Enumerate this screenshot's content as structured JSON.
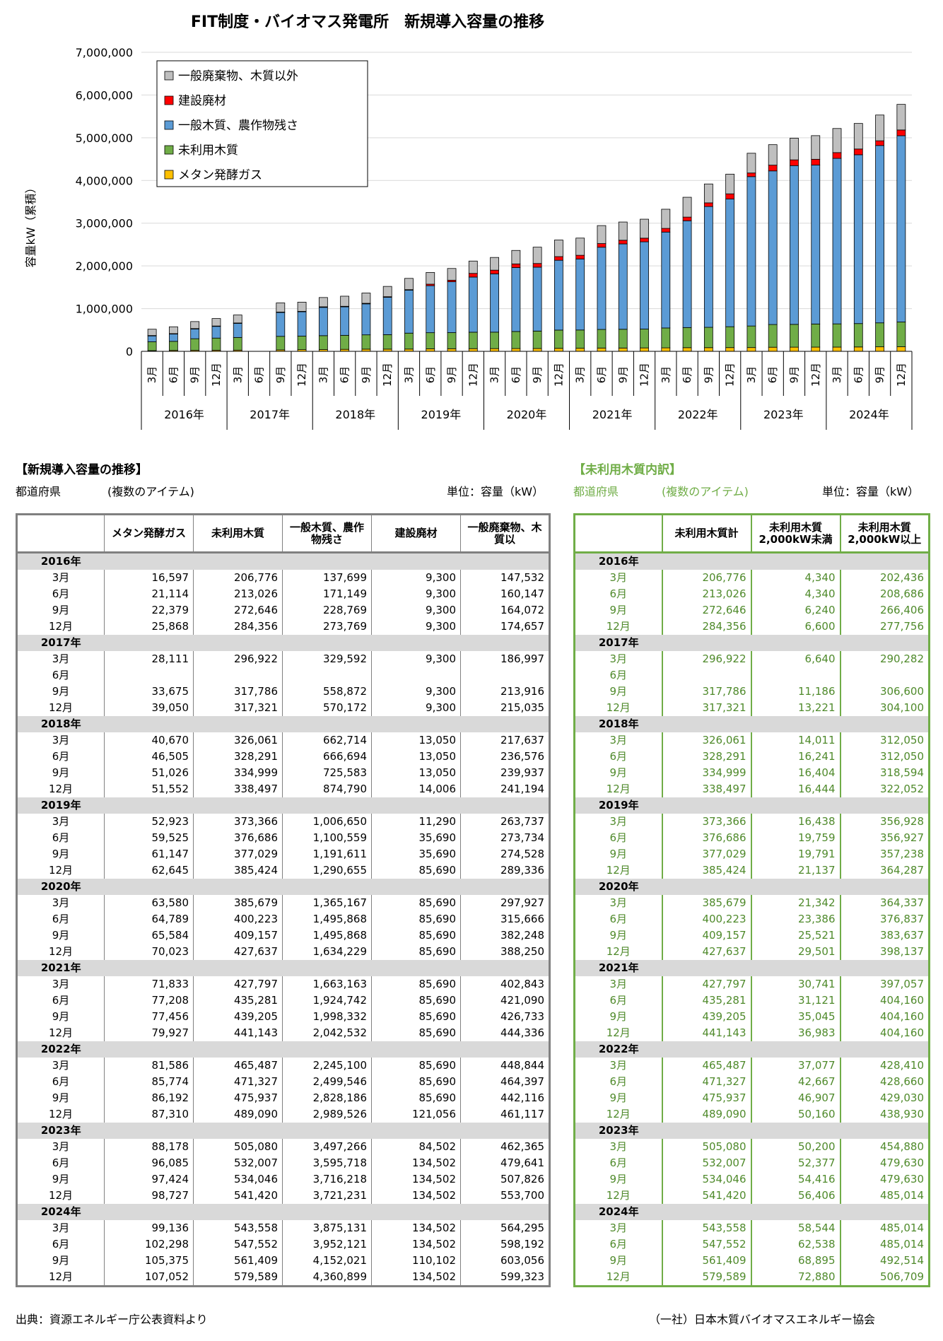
{
  "chart_data": {
    "type": "stacked-bar",
    "title": "FIT制度・バイオマス発電所　新規導入容量の推移",
    "ylabel": "容量kW（累積）",
    "ylim": [
      0,
      7000000
    ],
    "yticks": [
      "0",
      "1,000,000",
      "2,000,000",
      "3,000,000",
      "4,000,000",
      "5,000,000",
      "6,000,000",
      "7,000,000"
    ],
    "grid": true,
    "legend_position": "top-left",
    "months": [
      "3月",
      "6月",
      "9月",
      "12月"
    ],
    "years": [
      "2016年",
      "2017年",
      "2018年",
      "2019年",
      "2020年",
      "2021年",
      "2022年",
      "2023年",
      "2024年"
    ],
    "series": [
      {
        "name": "メタン発酵ガス",
        "color": "#ffc000",
        "values": [
          16597,
          21114,
          22379,
          25868,
          28111,
          null,
          33675,
          39050,
          40670,
          46505,
          51026,
          51552,
          52923,
          59525,
          61147,
          62645,
          63580,
          64789,
          65584,
          70023,
          71833,
          77208,
          77456,
          79927,
          81586,
          85774,
          86192,
          87310,
          88178,
          96085,
          97424,
          98727,
          99136,
          102298,
          105375,
          107052
        ]
      },
      {
        "name": "未利用木質",
        "color": "#70ad47",
        "values": [
          206776,
          213026,
          272646,
          284356,
          296922,
          null,
          317786,
          317321,
          326061,
          328291,
          334999,
          338497,
          373366,
          376686,
          377029,
          385424,
          385679,
          400223,
          409157,
          427637,
          427797,
          435281,
          439205,
          441143,
          465487,
          471327,
          475937,
          489090,
          505080,
          532007,
          534046,
          541420,
          543558,
          547552,
          561409,
          579589
        ]
      },
      {
        "name": "一般木質、農作物残さ",
        "color": "#5b9bd5",
        "values": [
          137699,
          171149,
          228769,
          273769,
          329592,
          null,
          558872,
          570172,
          662714,
          666694,
          725583,
          874790,
          1006650,
          1100559,
          1191611,
          1290655,
          1365167,
          1495868,
          1495868,
          1634229,
          1663163,
          1924742,
          1998332,
          2042532,
          2245100,
          2499546,
          2828186,
          2989526,
          3497266,
          3595718,
          3716218,
          3721231,
          3875131,
          3952121,
          4152021,
          4360899
        ]
      },
      {
        "name": "建設廃材",
        "color": "#ff0000",
        "values": [
          9300,
          9300,
          9300,
          9300,
          9300,
          null,
          9300,
          9300,
          13050,
          13050,
          13050,
          14006,
          11290,
          35690,
          35690,
          85690,
          85690,
          85690,
          85690,
          85690,
          85690,
          85690,
          85690,
          85690,
          85690,
          85690,
          85690,
          121056,
          84502,
          134502,
          134502,
          134502,
          134502,
          134502,
          110102,
          134502
        ]
      },
      {
        "name": "一般廃棄物、木質以外",
        "color": "#bfbfbf",
        "values": [
          147532,
          160147,
          164072,
          174657,
          186997,
          null,
          213916,
          215035,
          217637,
          236576,
          239937,
          241194,
          263737,
          273734,
          274528,
          289336,
          297927,
          315666,
          382248,
          388250,
          402843,
          421090,
          426733,
          444336,
          448844,
          464397,
          442116,
          461117,
          462365,
          479641,
          507826,
          553700,
          564295,
          598192,
          603056,
          599323
        ]
      }
    ]
  },
  "legend_order": [
    "一般廃棄物、木質以外",
    "建設廃材",
    "一般木質、農作物残さ",
    "未利用木質",
    "メタン発酵ガス"
  ],
  "main_table": {
    "title": "【新規導入容量の推移】",
    "filter_label": "都道府県",
    "filter_value": "(複数のアイテム)",
    "unit": "単位：容量（kW）",
    "headers": [
      "メタン発酵ガス",
      "未利用木質",
      "一般木質、農作物残さ",
      "建設廃材",
      "一般廃棄物、木質以"
    ]
  },
  "sub_table": {
    "title": "【未利用木質内訳】",
    "filter_label": "都道府県",
    "filter_value": "(複数のアイテム)",
    "unit": "単位：容量（kW）",
    "headers": [
      "未利用木質計",
      "未利用木質 2,000kW未満",
      "未利用木質 2,000kW以上"
    ],
    "under2000": [
      4340,
      4340,
      6240,
      6600,
      6640,
      null,
      11186,
      13221,
      14011,
      16241,
      16404,
      16444,
      16438,
      19759,
      19791,
      21137,
      21342,
      23386,
      25521,
      29501,
      30741,
      31121,
      35045,
      36983,
      37077,
      42667,
      46907,
      50160,
      50200,
      52377,
      54416,
      56406,
      58544,
      62538,
      68895,
      72880
    ],
    "over2000": [
      202436,
      208686,
      266406,
      277756,
      290282,
      null,
      306600,
      304100,
      312050,
      312050,
      318594,
      322052,
      356928,
      356927,
      357238,
      364287,
      364337,
      376837,
      383637,
      398137,
      397057,
      404160,
      404160,
      404160,
      428410,
      428660,
      429030,
      438930,
      454880,
      479630,
      479630,
      485014,
      485014,
      485014,
      492514,
      506709
    ]
  },
  "footer": {
    "source": "出典：資源エネルギー庁公表資料より",
    "org": "（一社）日本木質バイオマスエネルギー協会"
  }
}
